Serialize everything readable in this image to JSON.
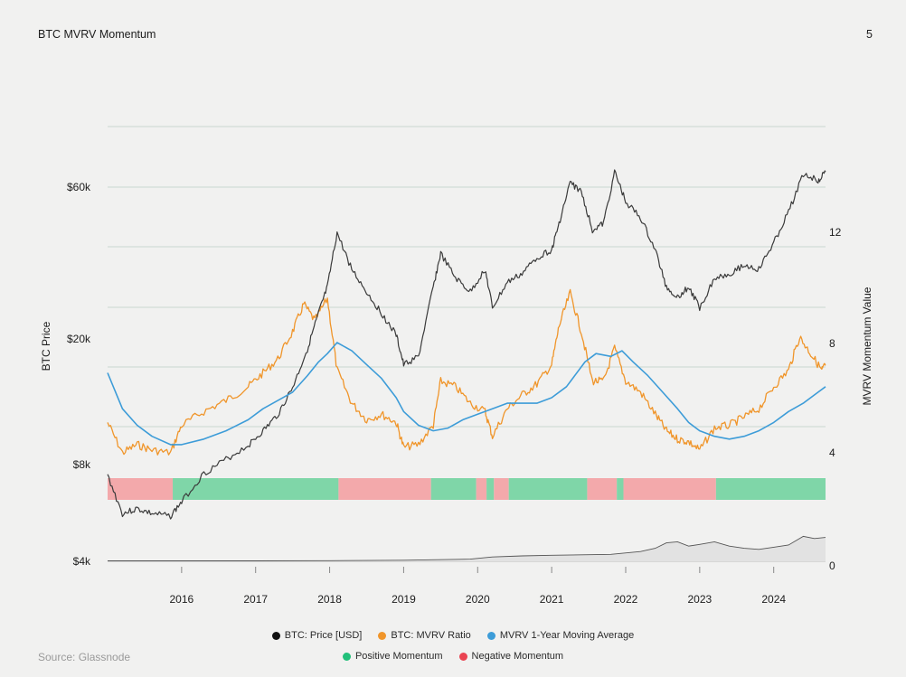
{
  "header": {
    "title": "BTC MVRV Momentum",
    "page_number": "5"
  },
  "footer": {
    "source": "Source: Glassnode"
  },
  "colors": {
    "price": "#3a3a3a",
    "mvrv": "#f0952a",
    "ma": "#3d9cd8",
    "positive": "#7fd6a8",
    "negative": "#f3a9ab",
    "grid": "#c9d8cf",
    "index": "#555555"
  },
  "legend": [
    {
      "label": "BTC: Price [USD]",
      "color": "#111111"
    },
    {
      "label": "BTC: MVRV Ratio",
      "color": "#f0952a"
    },
    {
      "label": "MVRV 1-Year Moving Average",
      "color": "#3d9cd8"
    },
    {
      "label": "Positive Momentum",
      "color": "#22c07a"
    },
    {
      "label": "Negative Momentum",
      "color": "#ea4452"
    }
  ],
  "chart_data": {
    "type": "line",
    "left_axis": {
      "label": "BTC Price",
      "scale": "log",
      "ticks": [
        "$4k",
        "$8k",
        "$20k",
        "$60k"
      ],
      "tick_values": [
        4000,
        8000,
        20000,
        60000
      ]
    },
    "right_axis": {
      "label": "MVRV Momentum Value",
      "ticks": [
        "0",
        "4",
        "8",
        "12"
      ],
      "tick_values": [
        0,
        4,
        8,
        12
      ]
    },
    "x_axis": {
      "ticks": [
        "2016",
        "2017",
        "2018",
        "2019",
        "2020",
        "2021",
        "2022",
        "2023",
        "2024"
      ],
      "range": [
        2015.0,
        2024.7
      ]
    },
    "series": [
      {
        "name": "BTC: Price [USD]",
        "x": [
          2015.0,
          2015.2,
          2015.4,
          2015.6,
          2015.85,
          2016.0,
          2016.3,
          2016.6,
          2016.9,
          2017.1,
          2017.3,
          2017.5,
          2017.7,
          2017.85,
          2017.97,
          2018.1,
          2018.3,
          2018.5,
          2018.7,
          2018.9,
          2019.0,
          2019.2,
          2019.4,
          2019.5,
          2019.7,
          2019.9,
          2020.1,
          2020.2,
          2020.4,
          2020.6,
          2020.8,
          2021.0,
          2021.1,
          2021.25,
          2021.4,
          2021.55,
          2021.7,
          2021.85,
          2022.0,
          2022.2,
          2022.4,
          2022.55,
          2022.7,
          2022.85,
          2023.0,
          2023.2,
          2023.4,
          2023.6,
          2023.8,
          2024.0,
          2024.2,
          2024.4,
          2024.6,
          2024.7
        ],
        "y": [
          7400,
          5600,
          5800,
          5600,
          5500,
          6100,
          7500,
          8300,
          9200,
          10200,
          11500,
          14000,
          18500,
          24000,
          29000,
          43000,
          33000,
          28000,
          24000,
          20500,
          16500,
          17500,
          29000,
          37000,
          31000,
          28000,
          33000,
          25000,
          30000,
          32000,
          36000,
          38000,
          46000,
          62000,
          58000,
          44000,
          46000,
          67000,
          54000,
          48000,
          38000,
          29000,
          27000,
          29000,
          25000,
          31000,
          32000,
          34000,
          33000,
          40000,
          50000,
          66000,
          63000,
          67000
        ]
      },
      {
        "name": "BTC: MVRV Ratio",
        "x": [
          2015.0,
          2015.2,
          2015.4,
          2015.6,
          2015.85,
          2016.0,
          2016.3,
          2016.6,
          2016.9,
          2017.1,
          2017.3,
          2017.5,
          2017.65,
          2017.8,
          2017.97,
          2018.1,
          2018.3,
          2018.5,
          2018.7,
          2018.9,
          2019.0,
          2019.2,
          2019.4,
          2019.5,
          2019.7,
          2019.9,
          2020.1,
          2020.2,
          2020.4,
          2020.6,
          2020.8,
          2021.0,
          2021.1,
          2021.25,
          2021.4,
          2021.55,
          2021.7,
          2021.85,
          2022.0,
          2022.2,
          2022.4,
          2022.55,
          2022.7,
          2022.85,
          2023.0,
          2023.2,
          2023.4,
          2023.6,
          2023.8,
          2024.0,
          2024.2,
          2024.35,
          2024.5,
          2024.65,
          2024.7
        ],
        "y": [
          5.1,
          4.0,
          4.3,
          4.1,
          4.0,
          5.0,
          5.5,
          5.9,
          6.4,
          6.9,
          7.4,
          8.4,
          9.4,
          8.8,
          9.6,
          7.0,
          5.8,
          5.2,
          5.4,
          5.1,
          4.2,
          4.3,
          5.0,
          6.6,
          6.4,
          5.8,
          5.5,
          4.6,
          5.6,
          6.1,
          6.5,
          7.2,
          8.6,
          9.8,
          8.4,
          6.6,
          6.6,
          7.8,
          6.6,
          6.2,
          5.4,
          4.8,
          4.5,
          4.4,
          4.1,
          4.9,
          5.0,
          5.3,
          5.6,
          6.4,
          7.0,
          8.2,
          7.6,
          7.0,
          7.2
        ]
      },
      {
        "name": "MVRV 1-Year Moving Average",
        "x": [
          2015.0,
          2015.2,
          2015.4,
          2015.6,
          2015.85,
          2016.0,
          2016.3,
          2016.6,
          2016.9,
          2017.1,
          2017.3,
          2017.5,
          2017.7,
          2017.85,
          2017.97,
          2018.1,
          2018.3,
          2018.5,
          2018.7,
          2018.9,
          2019.0,
          2019.2,
          2019.4,
          2019.6,
          2019.8,
          2020.0,
          2020.2,
          2020.4,
          2020.6,
          2020.8,
          2021.0,
          2021.2,
          2021.45,
          2021.6,
          2021.8,
          2021.95,
          2022.1,
          2022.3,
          2022.5,
          2022.7,
          2022.85,
          2023.0,
          2023.2,
          2023.4,
          2023.6,
          2023.8,
          2024.0,
          2024.2,
          2024.4,
          2024.6,
          2024.7
        ],
        "y": [
          6.9,
          5.6,
          5.0,
          4.6,
          4.3,
          4.3,
          4.5,
          4.8,
          5.2,
          5.6,
          5.9,
          6.2,
          6.8,
          7.3,
          7.6,
          8.0,
          7.7,
          7.2,
          6.7,
          6.0,
          5.5,
          5.0,
          4.8,
          4.9,
          5.2,
          5.4,
          5.6,
          5.8,
          5.8,
          5.8,
          6.0,
          6.4,
          7.3,
          7.6,
          7.5,
          7.7,
          7.3,
          6.8,
          6.2,
          5.6,
          5.1,
          4.8,
          4.6,
          4.5,
          4.6,
          4.8,
          5.1,
          5.5,
          5.8,
          6.2,
          6.4
        ]
      }
    ],
    "momentum_bands": [
      {
        "from": 2015.0,
        "to": 2015.88,
        "state": "negative"
      },
      {
        "from": 2015.88,
        "to": 2018.12,
        "state": "positive"
      },
      {
        "from": 2018.12,
        "to": 2019.37,
        "state": "negative"
      },
      {
        "from": 2019.37,
        "to": 2019.98,
        "state": "positive"
      },
      {
        "from": 2019.98,
        "to": 2020.12,
        "state": "negative"
      },
      {
        "from": 2020.12,
        "to": 2020.22,
        "state": "positive"
      },
      {
        "from": 2020.22,
        "to": 2020.42,
        "state": "negative"
      },
      {
        "from": 2020.42,
        "to": 2021.48,
        "state": "positive"
      },
      {
        "from": 2021.48,
        "to": 2021.88,
        "state": "negative"
      },
      {
        "from": 2021.88,
        "to": 2021.97,
        "state": "positive"
      },
      {
        "from": 2021.97,
        "to": 2023.22,
        "state": "negative"
      },
      {
        "from": 2023.22,
        "to": 2024.7,
        "state": "positive"
      }
    ],
    "momentum_value": {
      "x": [
        2015.0,
        2016.0,
        2017.0,
        2018.0,
        2019.0,
        2019.9,
        2020.2,
        2020.6,
        2021.0,
        2021.4,
        2021.8,
        2022.2,
        2022.4,
        2022.55,
        2022.7,
        2022.85,
        2023.0,
        2023.2,
        2023.4,
        2023.6,
        2023.8,
        2024.0,
        2024.2,
        2024.4,
        2024.55,
        2024.7
      ],
      "y": [
        0.02,
        0.02,
        0.02,
        0.03,
        0.05,
        0.1,
        0.2,
        0.25,
        0.28,
        0.3,
        0.32,
        0.45,
        0.6,
        0.85,
        0.9,
        0.7,
        0.78,
        0.9,
        0.7,
        0.6,
        0.55,
        0.65,
        0.75,
        1.15,
        1.05,
        1.1
      ]
    }
  }
}
